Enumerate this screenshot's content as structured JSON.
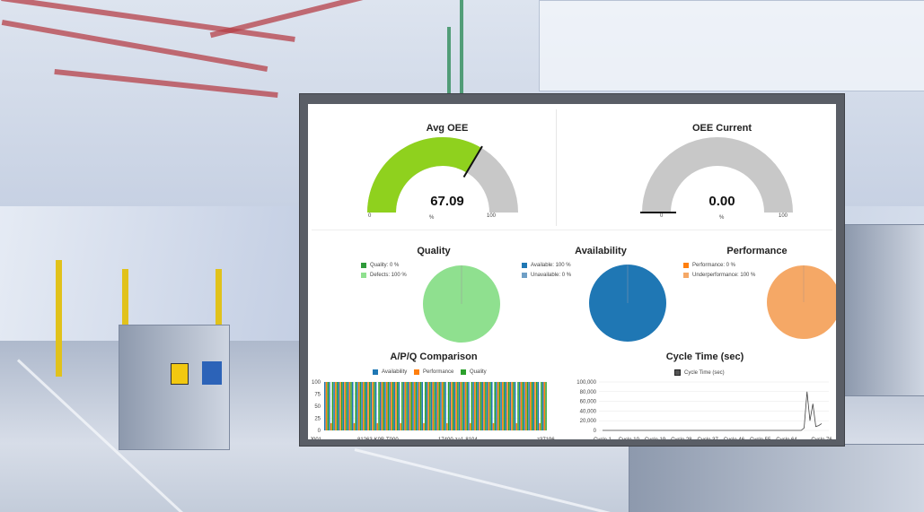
{
  "avg_oee": {
    "title": "Avg OEE",
    "value": "67.09",
    "unit": "%",
    "min": "0",
    "max": "100",
    "level": 0.6709,
    "fill_color": "#8fd11e",
    "track_color": "#c8c8c8"
  },
  "oee_current": {
    "title": "OEE Current",
    "value": "0.00",
    "unit": "%",
    "min": "0",
    "max": "100",
    "level": 0.0,
    "track_color": "#c8c8c8"
  },
  "quality": {
    "title": "Quality",
    "legend": [
      {
        "label": "Quality: 0 %",
        "color": "#2e9a3a"
      },
      {
        "label": "Defects: 100 %",
        "color": "#8fe08f"
      }
    ],
    "pie_color": "#8fe08f"
  },
  "availability": {
    "title": "Availability",
    "legend": [
      {
        "label": "Available: 100 %",
        "color": "#1f77b4"
      },
      {
        "label": "Unavailable: 0 %",
        "color": "#6f9fc6"
      }
    ],
    "pie_color": "#1f77b4"
  },
  "performance": {
    "title": "Performance",
    "legend": [
      {
        "label": "Performance: 0 %",
        "color": "#ff7f0e"
      },
      {
        "label": "Underperformance: 100 %",
        "color": "#f5a866"
      }
    ],
    "pie_color": "#f5a866"
  },
  "apq": {
    "title": "A/P/Q Comparison",
    "legend": [
      {
        "label": "Availability",
        "color": "#1f77b4"
      },
      {
        "label": "Performance",
        "color": "#ff7f0e"
      },
      {
        "label": "Quality",
        "color": "#2ca02c"
      }
    ],
    "y_ticks": [
      "100",
      "75",
      "50",
      "25",
      "0"
    ],
    "x_ticks": [
      "J001",
      "81263-K0B-T000",
      "17400-za1-8104",
      "z37196"
    ]
  },
  "cycle": {
    "title": "Cycle Time (sec)",
    "legend": "Cycle Time (sec)",
    "y_ticks": [
      "100,000",
      "80,000",
      "60,000",
      "40,000",
      "20,000",
      "0"
    ],
    "x_ticks": [
      "Cycle 1",
      "Cycle 10",
      "Cycle 19",
      "Cycle 28",
      "Cycle 37",
      "Cycle 46",
      "Cycle 55",
      "Cycle 64",
      "Cycle 76"
    ]
  },
  "chart_data": [
    {
      "type": "bar",
      "title": "A/P/Q Comparison",
      "ylim": [
        0,
        100
      ],
      "categories": [
        "J001",
        "81263-K0B-T000",
        "17400-za1-8104",
        "z37196"
      ],
      "series": [
        {
          "name": "Availability",
          "values": [
            100,
            100,
            100,
            100
          ]
        },
        {
          "name": "Performance",
          "values": [
            100,
            100,
            100,
            100
          ]
        },
        {
          "name": "Quality",
          "values": [
            100,
            100,
            100,
            100
          ]
        }
      ]
    },
    {
      "type": "line",
      "title": "Cycle Time (sec)",
      "ylim": [
        0,
        100000
      ],
      "x": [
        "Cycle 1",
        "Cycle 10",
        "Cycle 19",
        "Cycle 28",
        "Cycle 37",
        "Cycle 46",
        "Cycle 55",
        "Cycle 64",
        "Cycle 76"
      ],
      "series": [
        {
          "name": "Cycle Time (sec)",
          "values": [
            0,
            0,
            0,
            0,
            0,
            0,
            0,
            0,
            10000
          ]
        }
      ]
    }
  ]
}
